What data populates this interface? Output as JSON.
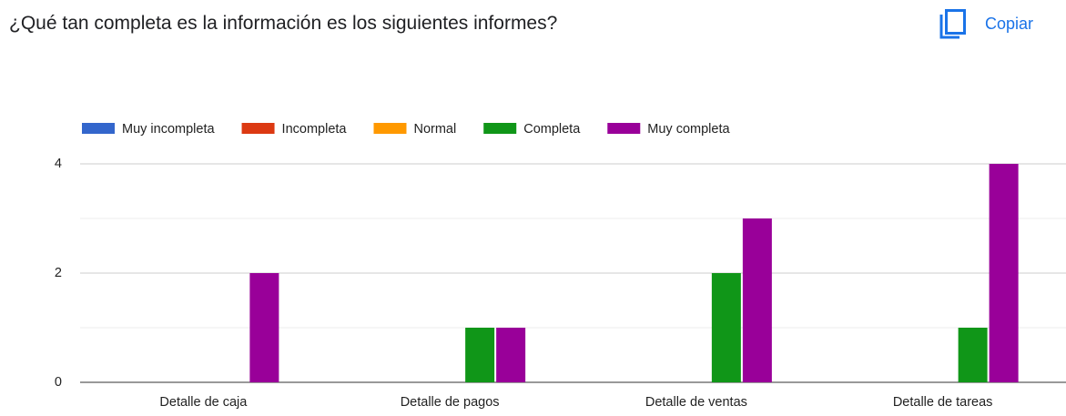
{
  "header": {
    "title": "¿Qué tan completa es la información es los siguientes informes?",
    "action": "Copiar"
  },
  "chart_data": {
    "type": "bar",
    "categories": [
      "Detalle de caja",
      "Detalle de pagos",
      "Detalle de ventas",
      "Detalle de tareas"
    ],
    "series": [
      {
        "name": "Muy incompleta",
        "color": "#3366cc",
        "values": [
          0,
          0,
          0,
          0
        ]
      },
      {
        "name": "Incompleta",
        "color": "#dc3912",
        "values": [
          0,
          0,
          0,
          0
        ]
      },
      {
        "name": "Normal",
        "color": "#ff9900",
        "values": [
          0,
          0,
          0,
          0
        ]
      },
      {
        "name": "Completa",
        "color": "#109618",
        "values": [
          0,
          1,
          2,
          1
        ]
      },
      {
        "name": "Muy completa",
        "color": "#990099",
        "values": [
          2,
          1,
          3,
          4
        ]
      }
    ],
    "ylim": [
      0,
      4
    ],
    "yticks": [
      0,
      2,
      4
    ],
    "minor_yticks": [
      1,
      3
    ],
    "grid": true,
    "legend": "top"
  }
}
